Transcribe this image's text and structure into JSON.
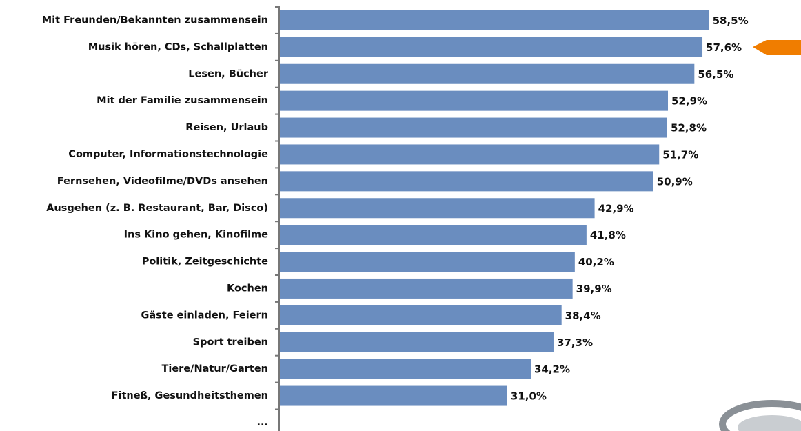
{
  "chart_data": {
    "type": "bar",
    "orientation": "horizontal",
    "categories": [
      "Mit Freunden/Bekannten zusammensein",
      "Musik hören, CDs, Schallplatten",
      "Lesen, Bücher",
      "Mit der Familie zusammensein",
      "Reisen, Urlaub",
      "Computer, Informationstechnologie",
      "Fernsehen, Videofilme/DVDs ansehen",
      "Ausgehen (z. B. Restaurant, Bar, Disco)",
      "Ins Kino gehen, Kinofilme",
      "Politik, Zeitgeschichte",
      "Kochen",
      "Gäste einladen, Feiern",
      "Sport treiben",
      "Tiere/Natur/Garten",
      "Fitneß, Gesundheitsthemen",
      "..."
    ],
    "values": [
      58.5,
      57.6,
      56.5,
      52.9,
      52.8,
      51.7,
      50.9,
      42.9,
      41.8,
      40.2,
      39.9,
      38.4,
      37.3,
      34.2,
      31.0,
      null
    ],
    "value_labels": [
      "58,5%",
      "57,6%",
      "56,5%",
      "52,9%",
      "52,8%",
      "51,7%",
      "50,9%",
      "42,9%",
      "41,8%",
      "40,2%",
      "39,9%",
      "38,4%",
      "37,3%",
      "34,2%",
      "31,0%",
      null
    ],
    "color": "#6a8dbf",
    "xlim": [
      0,
      70
    ]
  }
}
